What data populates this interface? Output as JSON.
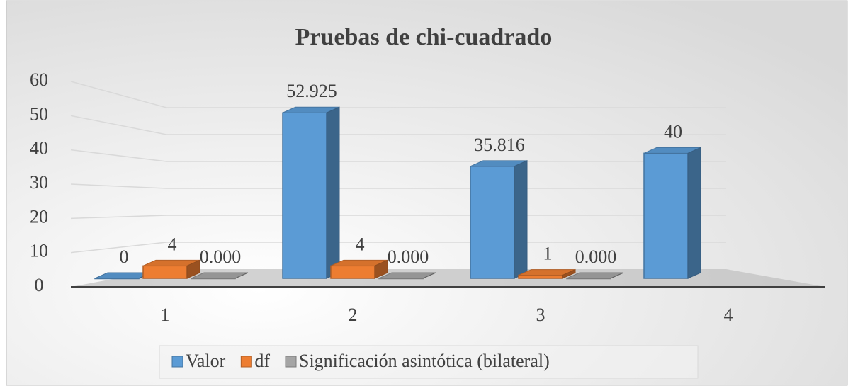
{
  "chart_data": {
    "type": "bar3d",
    "title": "Pruebas de chi-cuadrado",
    "categories": [
      "1",
      "2",
      "3",
      "4"
    ],
    "series": [
      {
        "name": "Valor",
        "color": "#5b9bd5",
        "values": [
          0,
          52.925,
          35.816,
          40
        ]
      },
      {
        "name": "df",
        "color": "#ed7d31",
        "values": [
          4,
          4,
          1,
          null
        ]
      },
      {
        "name": "Significación asintótica (bilateral)",
        "color": "#a5a5a5",
        "values": [
          0,
          0,
          0,
          null
        ],
        "value_labels": [
          "0.000",
          "0.000",
          "0.000",
          null
        ]
      }
    ],
    "ylim": [
      0,
      60
    ],
    "yticks": [
      0,
      10,
      20,
      30,
      40,
      50,
      60
    ],
    "grid": true,
    "legend": "bottom"
  }
}
